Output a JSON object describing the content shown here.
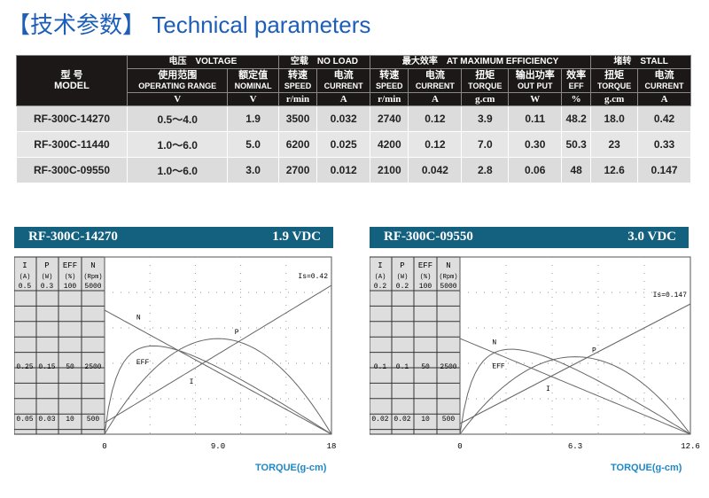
{
  "title": {
    "cn": "【技术参数】",
    "en": "Technical parameters"
  },
  "table": {
    "model_header": [
      "型 号",
      "MODEL"
    ],
    "groups": [
      "电压　VOLTAGE",
      "空载　NO LOAD",
      "最大效率　AT MAXIMUM EFFICIENCY",
      "堵转　STALL"
    ],
    "columns": [
      [
        "使用范围",
        "OPERATING RANGE"
      ],
      [
        "额定值",
        "NOMINAL"
      ],
      [
        "转速",
        "SPEED"
      ],
      [
        "电流",
        "CURRENT"
      ],
      [
        "转速",
        "SPEED"
      ],
      [
        "电流",
        "CURRENT"
      ],
      [
        "扭矩",
        "TORQUE"
      ],
      [
        "输出功率",
        "OUT PUT"
      ],
      [
        "效率",
        "EFF"
      ],
      [
        "扭矩",
        "TORQUE"
      ],
      [
        "电流",
        "CURRENT"
      ]
    ],
    "units": [
      "V",
      "V",
      "r/min",
      "A",
      "r/min",
      "A",
      "g.cm",
      "W",
      "%",
      "g.cm",
      "A"
    ],
    "rows": [
      [
        "RF-300C-14270",
        "0.5～4.0",
        "1.9",
        "3500",
        "0.032",
        "2740",
        "0.12",
        "3.9",
        "0.11",
        "48.2",
        "18.0",
        "0.42"
      ],
      [
        "RF-300C-11440",
        "1.0～6.0",
        "5.0",
        "6200",
        "0.025",
        "4200",
        "0.12",
        "7.0",
        "0.30",
        "50.3",
        "23",
        "0.33"
      ],
      [
        "RF-300C-09550",
        "1.0～6.0",
        "3.0",
        "2700",
        "0.012",
        "2100",
        "0.042",
        "2.8",
        "0.06",
        "48",
        "12.6",
        "0.147"
      ]
    ]
  },
  "chart_data": [
    {
      "type": "line",
      "title": "RF-300C-14270",
      "voltage": "1.9 VDC",
      "xlabel": "TORQUE(g-cm)",
      "xlim": [
        0,
        18
      ],
      "xticks": [
        "0",
        "9.0",
        "18"
      ],
      "axes": [
        {
          "name": "I",
          "unit": "(A)",
          "max": "0.5",
          "mid": "0.25",
          "low": "0.05",
          "scale": 0.5
        },
        {
          "name": "P",
          "unit": "(W)",
          "max": "0.3",
          "mid": "0.15",
          "low": "0.03",
          "scale": 0.3
        },
        {
          "name": "EFF",
          "unit": "(%)",
          "max": "100",
          "mid": "50",
          "low": "10",
          "scale": 100
        },
        {
          "name": "N",
          "unit": "(Rpm)",
          "max": "5000",
          "mid": "2500",
          "low": "500",
          "scale": 5000
        }
      ],
      "annotation": "Is=0.42",
      "no_load_speed": 3500,
      "no_load_current": 0.032,
      "stall_torque": 18,
      "stall_current": 0.42,
      "volt": 1.9,
      "series": [
        {
          "name": "N"
        },
        {
          "name": "I"
        },
        {
          "name": "P"
        },
        {
          "name": "EFF"
        }
      ]
    },
    {
      "type": "line",
      "title": "RF-300C-09550",
      "voltage": "3.0 VDC",
      "xlabel": "TORQUE(g-cm)",
      "xlim": [
        0,
        12.6
      ],
      "xticks": [
        "0",
        "6.3",
        "12.6"
      ],
      "axes": [
        {
          "name": "I",
          "unit": "(A)",
          "max": "0.2",
          "mid": "0.1",
          "low": "0.02",
          "scale": 0.2
        },
        {
          "name": "P",
          "unit": "(W)",
          "max": "0.2",
          "mid": "0.1",
          "low": "0.02",
          "scale": 0.2
        },
        {
          "name": "EFF",
          "unit": "(%)",
          "max": "100",
          "mid": "50",
          "low": "10",
          "scale": 100
        },
        {
          "name": "N",
          "unit": "(Rpm)",
          "max": "5000",
          "mid": "2500",
          "low": "500",
          "scale": 5000
        }
      ],
      "annotation": "Is=0.147",
      "no_load_speed": 2700,
      "no_load_current": 0.012,
      "stall_torque": 12.6,
      "stall_current": 0.147,
      "volt": 3.0,
      "series": [
        {
          "name": "N"
        },
        {
          "name": "I"
        },
        {
          "name": "P"
        },
        {
          "name": "EFF"
        }
      ]
    }
  ]
}
